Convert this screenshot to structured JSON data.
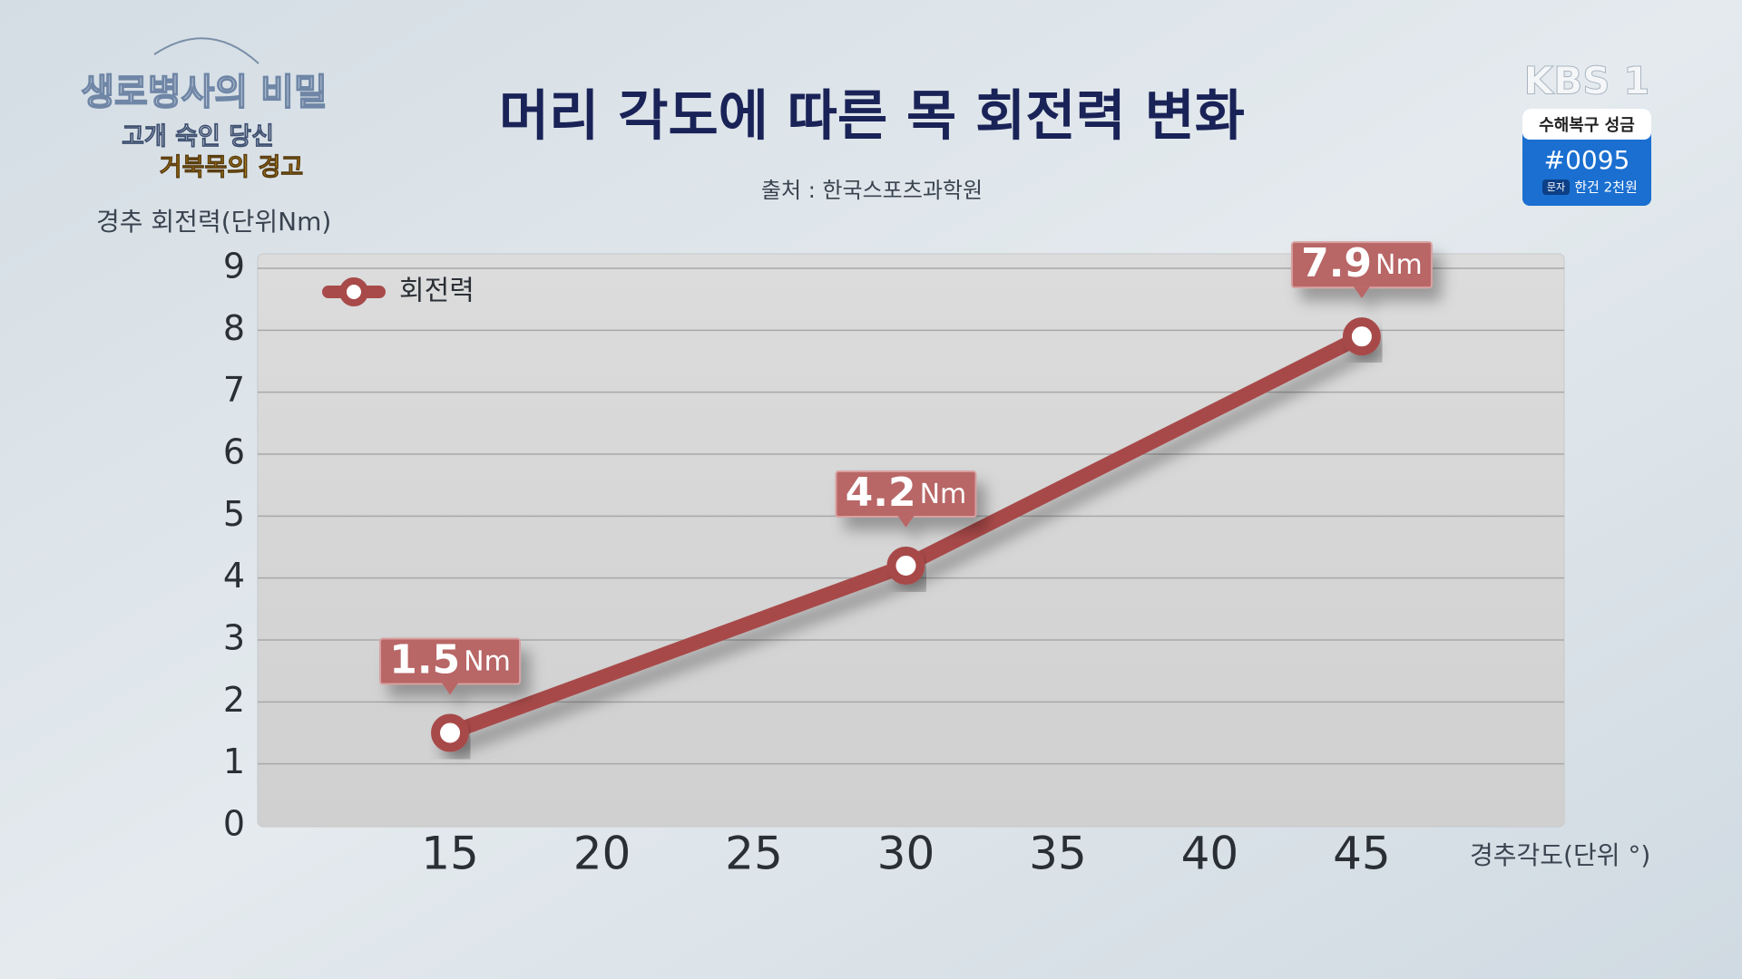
{
  "chart_data": {
    "type": "line",
    "title": "머리 각도에 따른 목 회전력 변화",
    "subtitle": "출처 : 한국스포츠과학원",
    "y_label": "경추 회전력(단위Nm)",
    "x_label": "경추각도(단위 °)",
    "x": [
      15,
      30,
      45
    ],
    "series": [
      {
        "name": "회전력",
        "color": "#a84a4a",
        "values": [
          1.5,
          4.2,
          7.9
        ],
        "value_labels": [
          "1.5",
          "4.2",
          "7.9"
        ]
      }
    ],
    "value_label_unit": "Nm",
    "xlim": [
      8.67,
      51.66
    ],
    "xticks": [
      15,
      20,
      25,
      30,
      35,
      40,
      45
    ],
    "ylim": [
      0,
      9
    ],
    "yticks": [
      0,
      1,
      2,
      3,
      4,
      5,
      6,
      7,
      8,
      9
    ],
    "grid": true,
    "legend": "top-left"
  },
  "broadcast": {
    "program": "생로병사의 비밀",
    "episode_line1": "고개 숙인 당신",
    "episode_line2": "거북목의 경고",
    "channel": "KBS 1",
    "donation_title": "수해복구 성금",
    "donation_number": "#0095",
    "sms_tag": "문자",
    "sms_price": "한건 2천원"
  }
}
